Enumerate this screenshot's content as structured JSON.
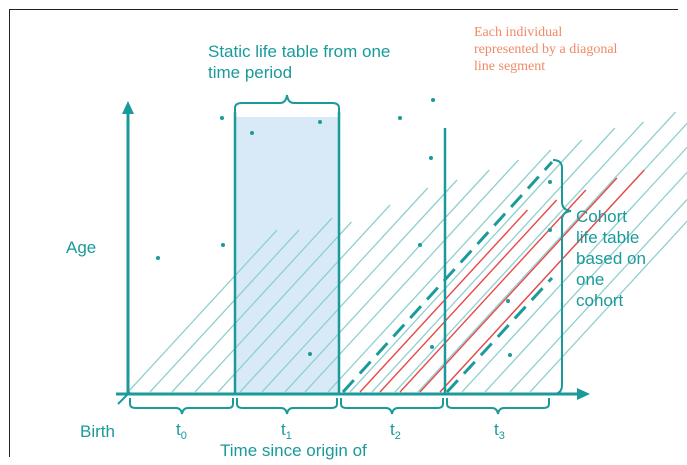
{
  "labels": {
    "static_title": "Static life table from one time period",
    "individual_note": "Each individual represented by a diagonal line segment",
    "cohort_note": "Cohort life table based on one cohort",
    "y_axis": "Age",
    "origin": "Birth",
    "x_axis": "Time since origin of"
  },
  "periods": [
    {
      "base": "t",
      "sub": "0"
    },
    {
      "base": "t",
      "sub": "1"
    },
    {
      "base": "t",
      "sub": "2"
    },
    {
      "base": "t",
      "sub": "3"
    }
  ],
  "colors": {
    "teal": "#1a9a9a",
    "teal_light": "#8fcfcf",
    "highlight": "#d8eaf8",
    "cohort": "#e84848",
    "note": "#f08a66"
  }
}
